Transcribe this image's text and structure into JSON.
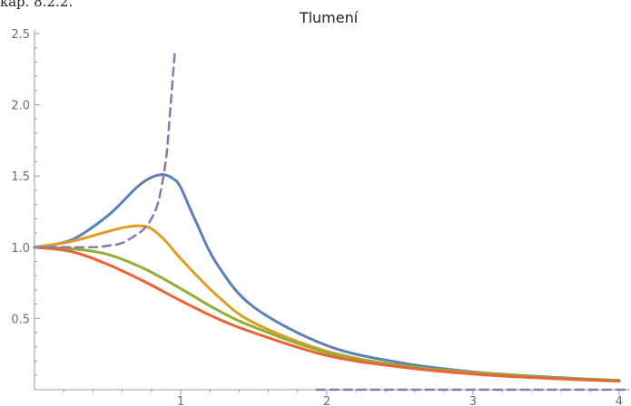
{
  "page_caption": "kap. 8.2.2.",
  "chart_data": {
    "type": "line",
    "title": "Tlumení",
    "xlabel": "",
    "ylabel": "",
    "xlim": [
      0,
      4.05
    ],
    "ylim": [
      0,
      2.5
    ],
    "x_ticks": [
      1,
      2,
      3,
      4
    ],
    "y_ticks": [
      0.5,
      1.0,
      1.5,
      2.0,
      2.5
    ],
    "x_tick_labels": [
      "1",
      "2",
      "3",
      "4"
    ],
    "y_tick_labels": [
      "0.5",
      "1.0",
      "1.5",
      "2.0",
      "2.5"
    ],
    "grid": false,
    "legend": "none",
    "series": [
      {
        "color": "#5e81b5",
        "style": "solid",
        "x": [
          0,
          0.25,
          0.5,
          0.7,
          0.8,
          0.88,
          0.95,
          1.0,
          1.1,
          1.25,
          1.5,
          2.0,
          2.5,
          3.0,
          3.5,
          4.0
        ],
        "y": [
          1.0,
          1.05,
          1.22,
          1.42,
          1.49,
          1.51,
          1.48,
          1.42,
          1.19,
          0.88,
          0.58,
          0.31,
          0.19,
          0.125,
          0.09,
          0.065
        ]
      },
      {
        "color": "#e19c24",
        "style": "solid",
        "x": [
          0,
          0.25,
          0.5,
          0.62,
          0.72,
          0.8,
          0.9,
          1.0,
          1.25,
          1.5,
          2.0,
          2.5,
          3.0,
          3.5,
          4.0
        ],
        "y": [
          1.0,
          1.04,
          1.11,
          1.14,
          1.15,
          1.13,
          1.04,
          0.92,
          0.66,
          0.47,
          0.27,
          0.17,
          0.12,
          0.085,
          0.065
        ]
      },
      {
        "color": "#8fb032",
        "style": "solid",
        "x": [
          0,
          0.25,
          0.5,
          0.75,
          1.0,
          1.25,
          1.5,
          2.0,
          2.5,
          3.0,
          3.5,
          4.0
        ],
        "y": [
          1.0,
          0.99,
          0.95,
          0.85,
          0.71,
          0.56,
          0.44,
          0.26,
          0.17,
          0.115,
          0.085,
          0.065
        ]
      },
      {
        "color": "#eb6235",
        "style": "solid",
        "x": [
          0,
          0.25,
          0.5,
          0.75,
          1.0,
          1.25,
          1.5,
          2.0,
          2.5,
          3.0,
          3.5,
          4.0
        ],
        "y": [
          1.0,
          0.97,
          0.88,
          0.76,
          0.625,
          0.5,
          0.4,
          0.24,
          0.16,
          0.11,
          0.08,
          0.06
        ]
      },
      {
        "color": "#8778b3",
        "style": "dashed",
        "x": [
          0,
          0.2,
          0.4,
          0.5,
          0.6,
          0.7,
          0.75,
          0.8,
          0.85,
          0.9,
          0.93,
          0.96
        ],
        "y": [
          1.0,
          1.0,
          1.0,
          1.01,
          1.03,
          1.09,
          1.13,
          1.2,
          1.33,
          1.62,
          1.98,
          2.37
        ]
      },
      {
        "color": "#8778b3",
        "style": "dashed",
        "x": [
          1.93,
          2.5,
          3.0,
          3.5,
          4.05
        ],
        "y": [
          0.0,
          0.0,
          0.0,
          0.0,
          0.0
        ]
      }
    ]
  }
}
